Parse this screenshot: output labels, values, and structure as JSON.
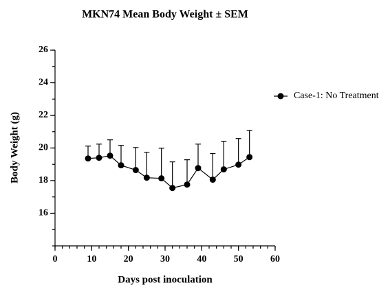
{
  "chart_data": {
    "type": "line",
    "title": "MKN74 Mean Body Weight ± SEM",
    "x_label": "Days post inoculation",
    "y_label": "Body Weight (g)",
    "x": [
      9,
      12,
      15,
      18,
      22,
      25,
      29,
      32,
      36,
      39,
      43,
      46,
      50,
      53
    ],
    "series": [
      {
        "name": "Case-1: No Treatment",
        "color": "#000000",
        "values": [
          19.36,
          19.4,
          19.53,
          18.94,
          18.65,
          18.18,
          18.14,
          17.55,
          17.76,
          18.77,
          18.06,
          18.69,
          18.98,
          19.44
        ],
        "errors": [
          0.76,
          0.84,
          0.97,
          1.22,
          1.38,
          1.56,
          1.85,
          1.6,
          1.52,
          1.47,
          1.6,
          1.72,
          1.6,
          1.64
        ]
      }
    ],
    "xlim": [
      0,
      60
    ],
    "xticks": [
      0,
      10,
      20,
      30,
      40,
      50,
      60
    ],
    "ylim": [
      14,
      26
    ],
    "yticks": [
      16,
      18,
      20,
      22,
      24,
      26
    ],
    "legend": "right"
  }
}
